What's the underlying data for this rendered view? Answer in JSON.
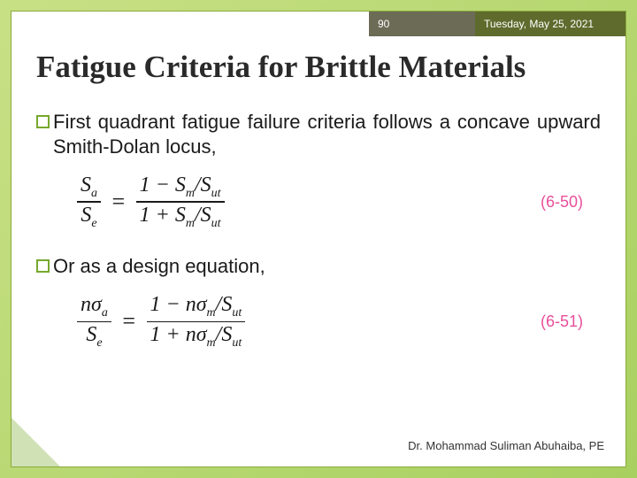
{
  "header": {
    "page_number": "90",
    "date": "Tuesday, May 25, 2021",
    "pagebox_bg": "#6b6b56",
    "datebox_bg": "#5f6b2d"
  },
  "title": "Fatigue Criteria for Brittle Materials",
  "bullets": [
    "First quadrant fatigue failure criteria follows a concave upward Smith-Dolan locus,",
    "Or as a design equation,"
  ],
  "equations": [
    {
      "label": "(6-50)",
      "lhs_num": "S<sub class='sub'>a</sub>",
      "lhs_den": "S<sub class='sub'>e</sub>",
      "rhs_num": "1 − S<sub class='sub'>m</sub>/S<sub class='sub'>ut</sub>",
      "rhs_den": "1 + S<sub class='sub'>m</sub>/S<sub class='sub'>ut</sub>"
    },
    {
      "label": "(6-51)",
      "lhs_num": "nσ<sub class='sub'>a</sub>",
      "lhs_den": "S<sub class='sub'>e</sub>",
      "rhs_num": "1 − nσ<sub class='sub'>m</sub>/S<sub class='sub'>ut</sub>",
      "rhs_den": "1 + nσ<sub class='sub'>m</sub>/S<sub class='sub'>ut</sub>"
    }
  ],
  "footer": "Dr. Mohammad Suliman Abuhaiba, PE",
  "colors": {
    "accent": "#77a82d",
    "eq_label": "#e94f9a",
    "bg_gradient_start": "#c8e085",
    "bg_gradient_end": "#a8d060"
  },
  "typography": {
    "title_fontsize": 35,
    "bullet_fontsize": 22,
    "eq_fontsize": 26,
    "footer_fontsize": 13,
    "header_fontsize": 12
  }
}
